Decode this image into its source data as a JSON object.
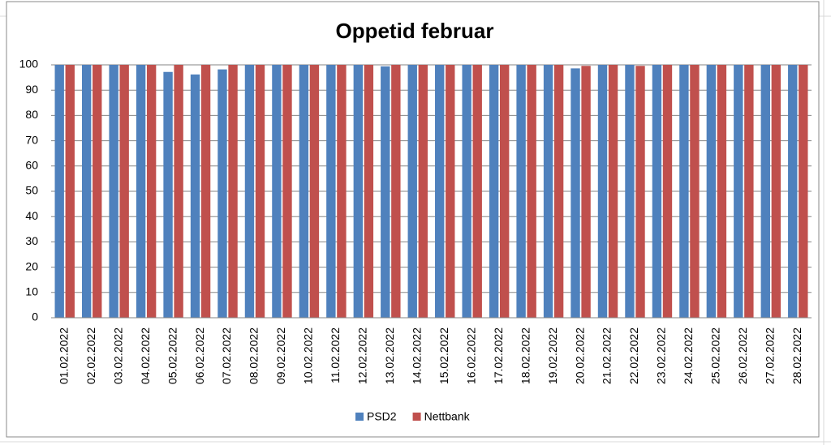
{
  "chart_data": {
    "type": "bar",
    "title": "Oppetid februar",
    "categories": [
      "01.02.2022",
      "02.02.2022",
      "03.02.2022",
      "04.02.2022",
      "05.02.2022",
      "06.02.2022",
      "07.02.2022",
      "08.02.2022",
      "09.02.2022",
      "10.02.2022",
      "11.02.2022",
      "12.02.2022",
      "13.02.2022",
      "14.02.2022",
      "15.02.2022",
      "16.02.2022",
      "17.02.2022",
      "18.02.2022",
      "19.02.2022",
      "20.02.2022",
      "21.02.2022",
      "22.02.2022",
      "23.02.2022",
      "24.02.2022",
      "25.02.2022",
      "26.02.2022",
      "27.02.2022",
      "28.02.2022"
    ],
    "series": [
      {
        "name": "PSD2",
        "color": "#4f81bd",
        "values": [
          100,
          100,
          100,
          100,
          97.2,
          96.2,
          98.2,
          100,
          100,
          100,
          100,
          100,
          99.4,
          100,
          100,
          100,
          100,
          100,
          100,
          98.6,
          100,
          100,
          100,
          100,
          100,
          100,
          100,
          100
        ]
      },
      {
        "name": "Nettbank",
        "color": "#c0504d",
        "values": [
          100,
          100,
          100,
          100,
          100,
          100,
          100,
          100,
          100,
          100,
          100,
          100,
          100,
          100,
          100,
          100,
          100,
          100,
          100,
          99.6,
          100,
          99.6,
          100,
          100,
          100,
          100,
          100,
          100
        ]
      }
    ],
    "ylim": [
      0,
      100
    ],
    "yticks": [
      0,
      10,
      20,
      30,
      40,
      50,
      60,
      70,
      80,
      90,
      100
    ],
    "grid": true,
    "legend": "bottom"
  }
}
